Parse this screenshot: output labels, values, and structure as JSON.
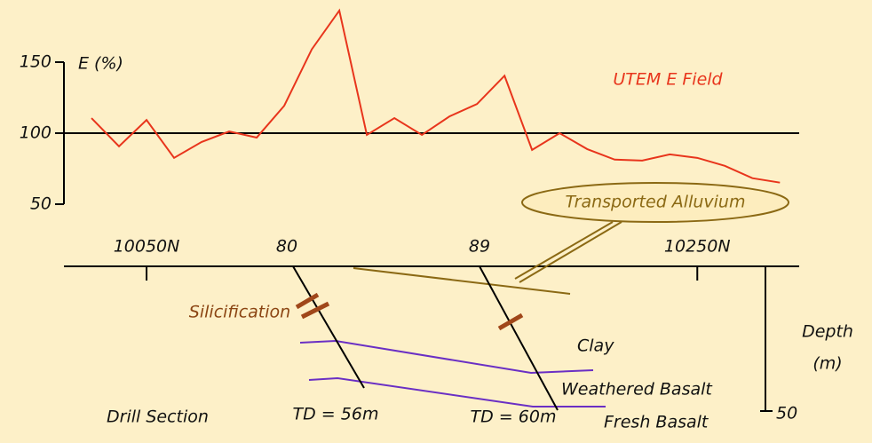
{
  "chart_data": {
    "type": "line",
    "y_label": "E (%)",
    "x": [
      10030,
      10040,
      10050,
      10060,
      10070,
      10080,
      10090,
      10100,
      10110,
      10120,
      10130,
      10140,
      10150,
      10160,
      10170,
      10180,
      10190,
      10200,
      10210,
      10220,
      10230,
      10240,
      10250,
      10260,
      10270,
      10280
    ],
    "series": [
      {
        "name": "UTEM E Field",
        "color": "#e8351c",
        "values": [
          110.6,
          90.7,
          109.3,
          82.6,
          93.8,
          101.2,
          96.9,
          119.3,
          159,
          186.3,
          98.8,
          110.6,
          98.8,
          111.8,
          120.5,
          140.4,
          88.2,
          100,
          88.8,
          81.4,
          80.7,
          85.1,
          82.6,
          77,
          68.3,
          65.2
        ]
      }
    ],
    "ylim": [
      50,
      150
    ],
    "yticks": [
      50,
      100,
      150
    ],
    "xlim": [
      10020,
      10287
    ],
    "xticks": [
      {
        "value": 10050,
        "label": "10050N"
      },
      {
        "value": 10250,
        "label": "10250N"
      }
    ]
  },
  "section": {
    "title": "Drill Section",
    "holes": [
      {
        "label": "80",
        "td": "TD = 56m"
      },
      {
        "label": "89",
        "td": "TD = 60m"
      }
    ],
    "alluvium": "Transported Alluvium",
    "silicification": "Silicification",
    "layers": [
      "Clay",
      "Weathered Basalt",
      "Fresh Basalt"
    ],
    "depth_label": [
      "Depth",
      "(m)"
    ],
    "depth_tick": 50
  }
}
